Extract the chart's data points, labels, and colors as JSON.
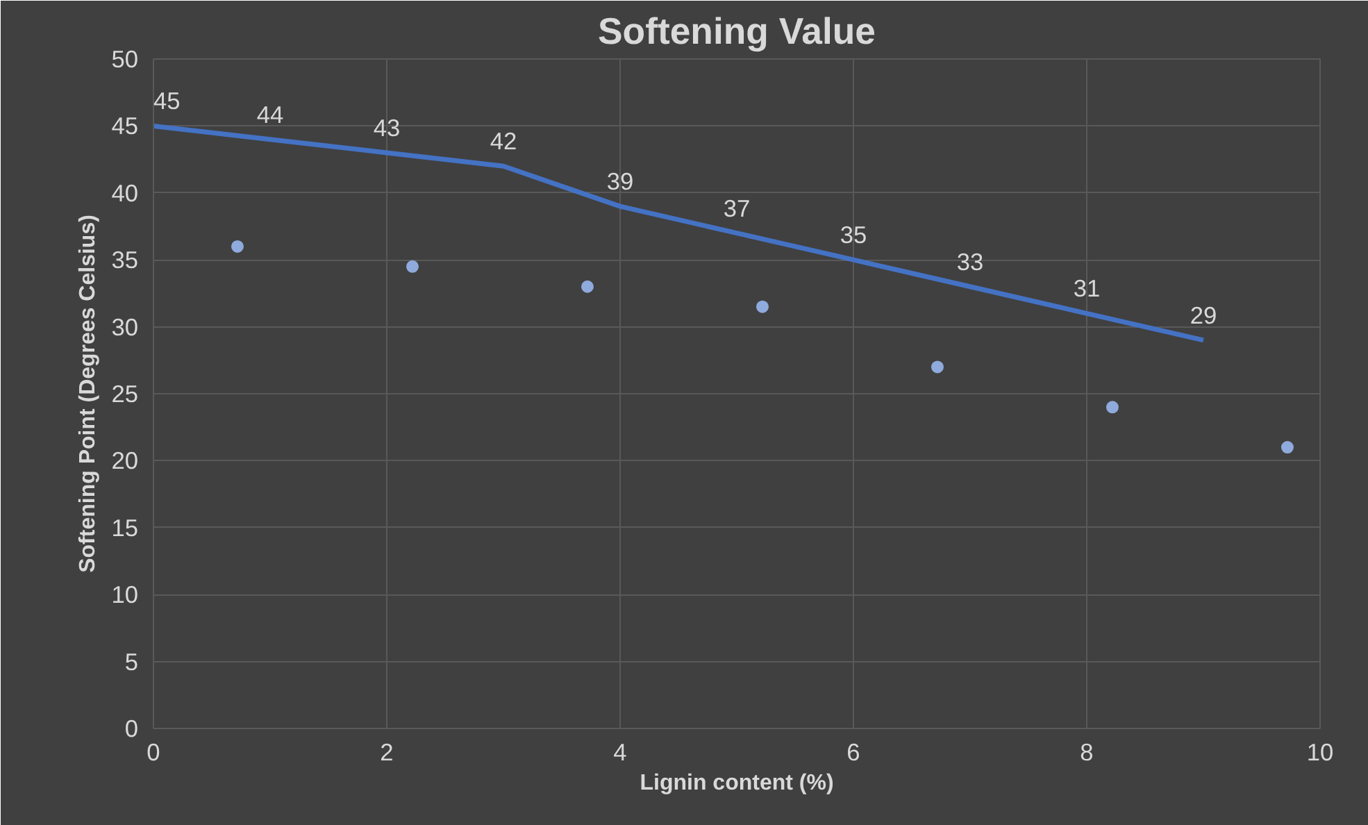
{
  "chart_data": {
    "type": "line",
    "title": "Softening Value",
    "xlabel": "Lignin content (%)",
    "ylabel": "Softening Point (Degrees Celsius)",
    "xlim": [
      0,
      10
    ],
    "xticks": [
      0,
      2,
      4,
      6,
      8,
      10
    ],
    "ylim": [
      0,
      50
    ],
    "yticks": [
      0,
      5,
      10,
      15,
      20,
      25,
      30,
      35,
      40,
      45,
      50
    ],
    "grid": true,
    "series": [
      {
        "color": "#4472c4",
        "x": [
          0,
          1,
          2,
          3,
          4,
          5,
          6,
          7,
          8,
          9
        ],
        "values": [
          45,
          44,
          43,
          42,
          39,
          37,
          35,
          33,
          31,
          29
        ],
        "data_labels": true,
        "marker": "none"
      },
      {
        "type": "scatter",
        "color": "#8faadc",
        "x": [
          0.72,
          2.22,
          3.72,
          5.22,
          6.72,
          8.22,
          9.72
        ],
        "values": [
          36,
          34.5,
          33,
          31.5,
          27,
          24,
          21
        ],
        "marker": "circle"
      }
    ]
  }
}
